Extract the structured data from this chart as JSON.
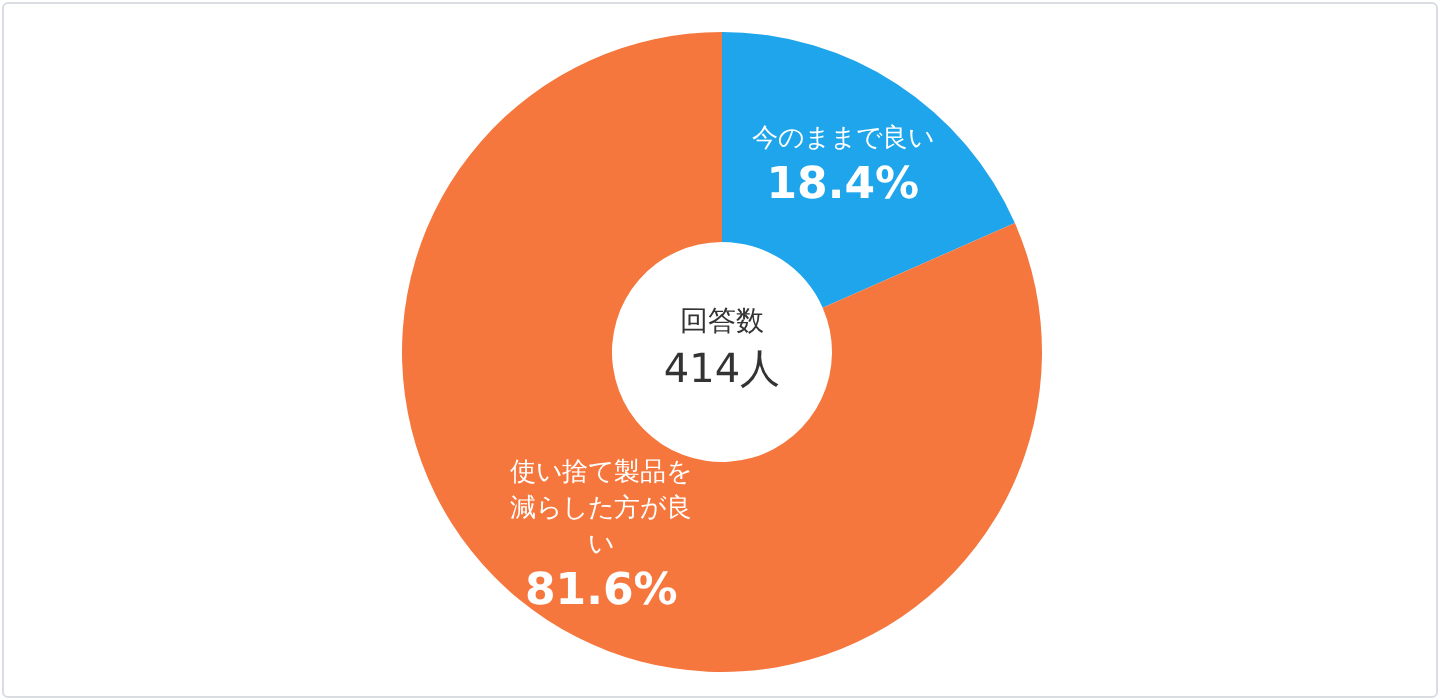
{
  "chart_data": {
    "type": "donut",
    "categories": [
      "今のままで良い",
      "使い捨て製品を減らした方が良い"
    ],
    "values": [
      18.4,
      81.6
    ],
    "colors": [
      "#1ea5eb",
      "#f5773d"
    ],
    "value_labels": [
      "18.4%",
      "81.6%"
    ],
    "annotations": [
      "回答数",
      "414人"
    ],
    "legend": false
  }
}
